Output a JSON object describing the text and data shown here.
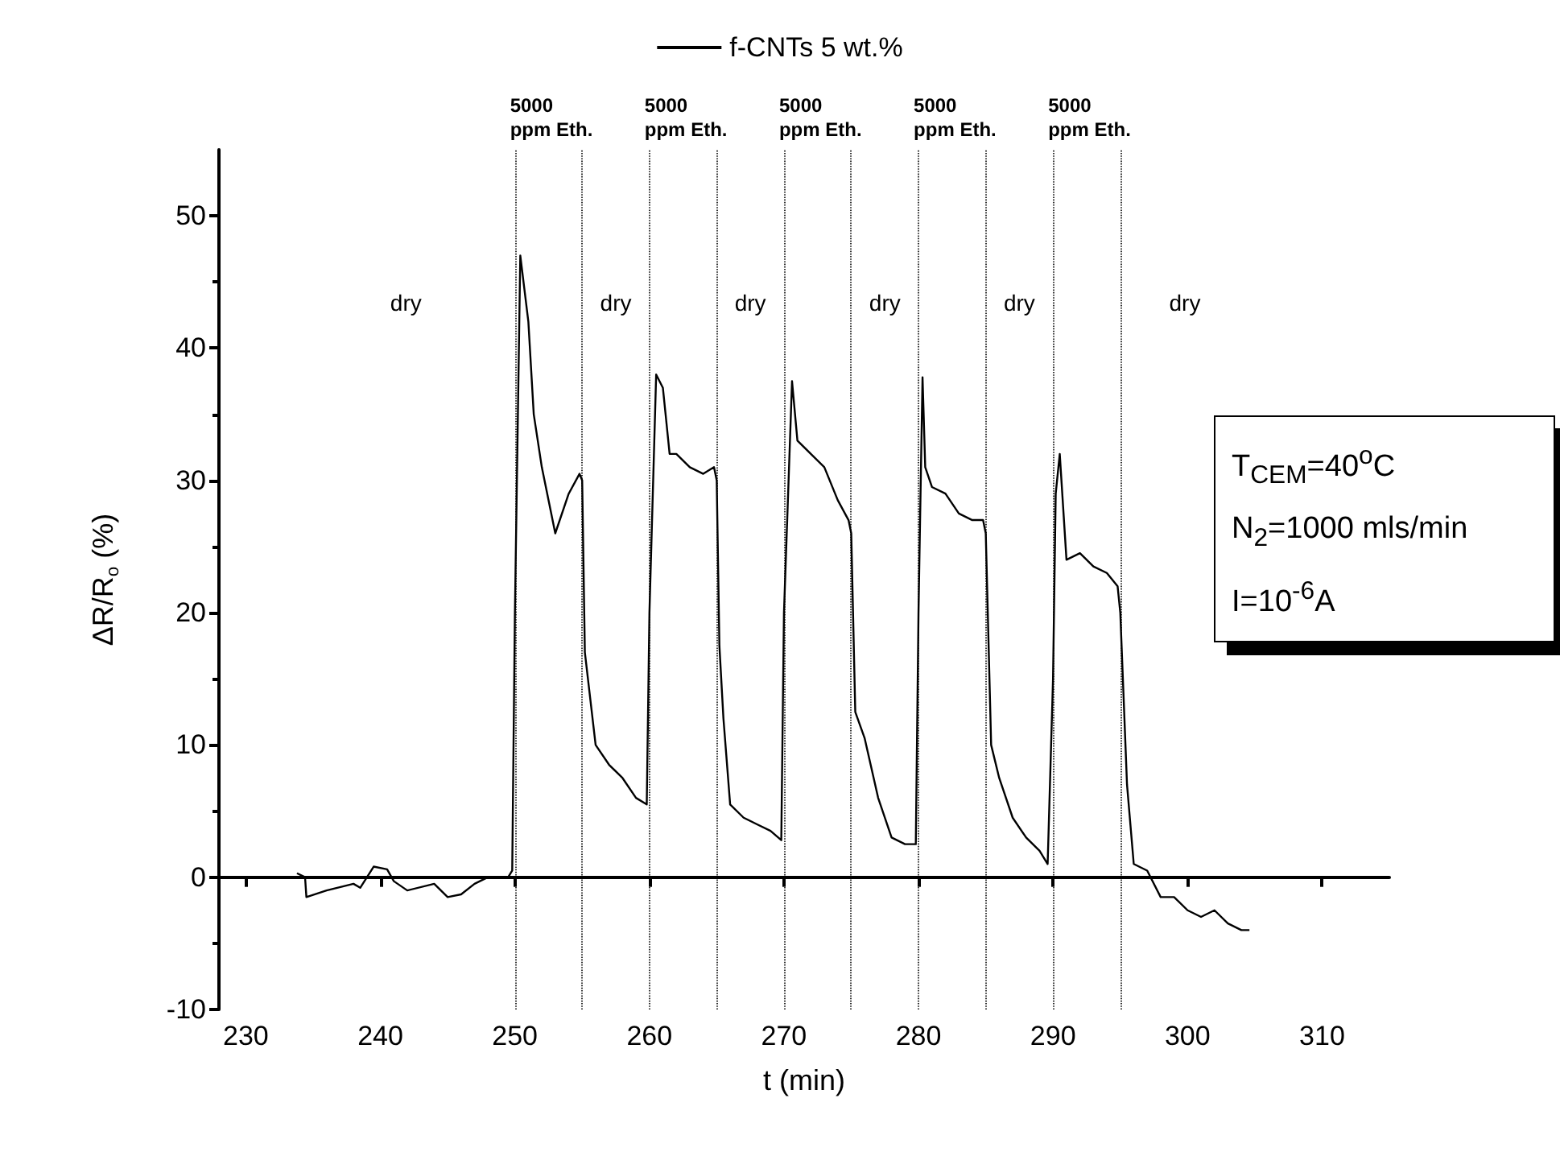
{
  "chart_data": {
    "type": "line",
    "xlabel": "t (min)",
    "ylabel": "ΔR/R$_{o}$ (%)",
    "xlim": [
      228,
      315
    ],
    "xticks": [
      230,
      240,
      250,
      260,
      270,
      280,
      290,
      300,
      310
    ],
    "ylim": [
      -10,
      55
    ],
    "yticks": [
      -10,
      0,
      10,
      20,
      30,
      40,
      50
    ],
    "legend": "top",
    "grid": false,
    "series": [
      {
        "name": "f-CNTs 5 wt.%",
        "color": "#000000",
        "x": [
          233.8,
          234.4,
          234.5,
          236,
          238,
          238.5,
          239.5,
          240.5,
          241,
          242,
          244,
          245,
          246,
          247,
          248,
          249.5,
          249.8,
          250,
          250.4,
          251,
          251.4,
          252,
          253,
          254,
          254.8,
          255,
          255.2,
          256,
          257,
          258,
          259,
          259.8,
          260,
          260.5,
          261,
          261.5,
          262,
          263,
          264,
          264.8,
          265,
          265.2,
          265.5,
          266,
          267,
          268,
          269,
          269.8,
          270,
          270.6,
          271,
          272,
          273,
          274,
          274.8,
          275,
          275.3,
          276,
          277,
          278,
          279,
          279.8,
          280,
          280.3,
          280.5,
          281,
          282,
          283,
          284,
          284.8,
          285,
          285.4,
          286,
          287,
          288,
          289,
          289.6,
          290,
          290.2,
          290.5,
          291,
          292,
          293,
          294,
          294.8,
          295,
          295.5,
          296,
          297,
          298,
          299,
          300,
          301,
          302,
          303,
          304,
          304.6
        ],
        "values": [
          0.3,
          0,
          -1.5,
          -1,
          -0.5,
          -0.8,
          0.8,
          0.6,
          -0.3,
          -1,
          -0.5,
          -1.5,
          -1.3,
          -0.5,
          0,
          0,
          0.5,
          20,
          47,
          42,
          35,
          31,
          26,
          29,
          30.5,
          30,
          17,
          10,
          8.5,
          7.5,
          6,
          5.5,
          20,
          38,
          37,
          32,
          32,
          31,
          30.5,
          31,
          30,
          17.5,
          12,
          5.5,
          4.5,
          4,
          3.5,
          2.8,
          20,
          37.5,
          33,
          32,
          31,
          28.5,
          27,
          26,
          12.5,
          10.5,
          6,
          3,
          2.5,
          2.5,
          20,
          37.8,
          31,
          29.5,
          29,
          27.5,
          27,
          27,
          26,
          10,
          7.5,
          4.5,
          3,
          2,
          1,
          15,
          29,
          32,
          24,
          24.5,
          23.5,
          23,
          22,
          20,
          7,
          1,
          0.5,
          -1.5,
          -1.5,
          -2.5,
          -3,
          -2.5,
          -3.5,
          -4,
          -4
        ]
      }
    ],
    "ref_lines": [
      {
        "axis": "x",
        "value": 250,
        "label": "5000\nppm Eth."
      },
      {
        "axis": "x",
        "value": 255,
        "label": null
      },
      {
        "axis": "x",
        "value": 260,
        "label": "5000\nppm Eth."
      },
      {
        "axis": "x",
        "value": 265,
        "label": null
      },
      {
        "axis": "x",
        "value": 270,
        "label": "5000\nppm Eth."
      },
      {
        "axis": "x",
        "value": 275,
        "label": null
      },
      {
        "axis": "x",
        "value": 280,
        "label": "5000\nppm Eth."
      },
      {
        "axis": "x",
        "value": 285,
        "label": null
      },
      {
        "axis": "x",
        "value": 290,
        "label": "5000\nppm Eth."
      },
      {
        "axis": "x",
        "value": 295,
        "label": null
      }
    ],
    "line_style": "solid",
    "marker": "none",
    "annotations": [
      "dry",
      "dry",
      "dry",
      "dry",
      "dry",
      "dry",
      "T$_{CEM}$=40$^{o}$C",
      "N$_{2}$=1000 mls/min",
      "I=10$^{-6}$A"
    ]
  }
}
